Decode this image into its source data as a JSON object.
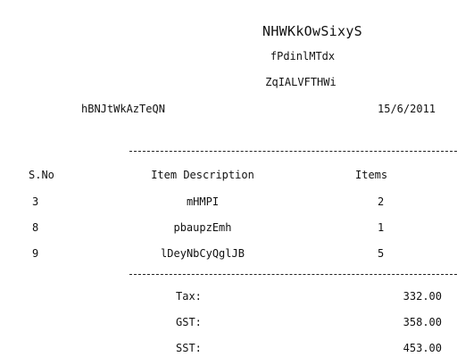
{
  "receipt": {
    "store_name": "NHWKkOwSixyS",
    "address_line1": "fPdinlMTdx",
    "address_line2": "ZqIALVFTHWi",
    "cashier": "hBNJtWkAzTeQN",
    "date": "15/6/2011",
    "columns": {
      "sno": "S.No",
      "description": "Item Description",
      "items": "Items"
    },
    "rows": [
      {
        "sno": "3",
        "description": "mHMPI",
        "items": "2"
      },
      {
        "sno": "8",
        "description": "pbaupzEmh",
        "items": "1"
      },
      {
        "sno": "9",
        "description": "lDeyNbCyQglJB",
        "items": "5"
      }
    ],
    "totals": [
      {
        "label": "Tax:",
        "value": "332.00"
      },
      {
        "label": "GST:",
        "value": "358.00"
      },
      {
        "label": "SST:",
        "value": "453.00"
      }
    ]
  }
}
